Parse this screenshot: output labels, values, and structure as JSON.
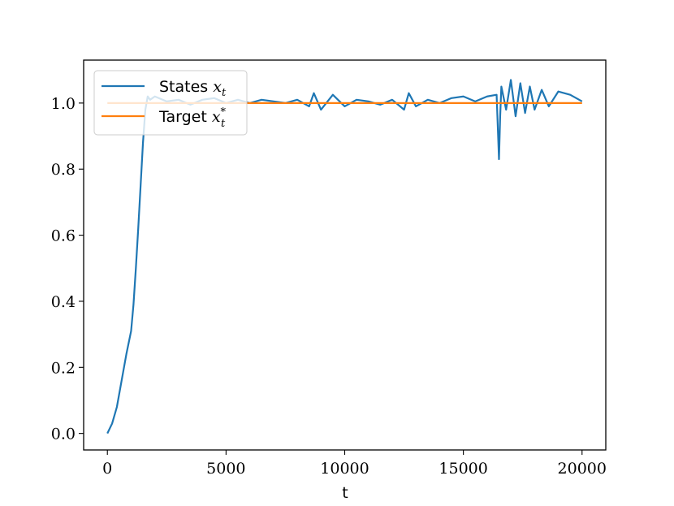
{
  "chart_data": {
    "type": "line",
    "title": "",
    "xlabel": "t",
    "ylabel": "",
    "xlim": [
      -1000,
      21000
    ],
    "ylim": [
      -0.05,
      1.13
    ],
    "xticks": [
      0,
      5000,
      10000,
      15000,
      20000
    ],
    "xtick_labels": [
      "0",
      "5000",
      "10000",
      "15000",
      "20000"
    ],
    "yticks": [
      0.0,
      0.2,
      0.4,
      0.6,
      0.8,
      1.0
    ],
    "ytick_labels": [
      "0.0",
      "0.2",
      "0.4",
      "0.6",
      "0.8",
      "1.0"
    ],
    "grid": false,
    "legend_position": "top-left",
    "series": [
      {
        "name": "States x_t",
        "label_text": "States",
        "label_math": "x",
        "label_math_sub": "t",
        "label_math_sup": "",
        "color": "#1f77b4",
        "x": [
          0,
          200,
          400,
          600,
          800,
          1000,
          1100,
          1200,
          1300,
          1400,
          1500,
          1600,
          1700,
          1800,
          2000,
          2500,
          3000,
          3500,
          4000,
          4500,
          5000,
          5500,
          6000,
          6500,
          7000,
          7500,
          8000,
          8500,
          8700,
          9000,
          9500,
          10000,
          10500,
          11000,
          11500,
          12000,
          12500,
          12700,
          13000,
          13500,
          14000,
          14500,
          15000,
          15500,
          16000,
          16400,
          16500,
          16550,
          16600,
          16800,
          17000,
          17200,
          17400,
          17600,
          17800,
          18000,
          18300,
          18600,
          19000,
          19500,
          20000
        ],
        "y": [
          0.0,
          0.03,
          0.08,
          0.16,
          0.24,
          0.31,
          0.39,
          0.5,
          0.62,
          0.75,
          0.88,
          0.98,
          1.02,
          1.01,
          1.02,
          1.005,
          1.01,
          0.995,
          1.01,
          1.015,
          1.0,
          1.01,
          1.0,
          1.01,
          1.005,
          1.0,
          1.01,
          0.99,
          1.03,
          0.98,
          1.025,
          0.99,
          1.01,
          1.005,
          0.995,
          1.01,
          0.98,
          1.03,
          0.99,
          1.01,
          1.0,
          1.015,
          1.02,
          1.005,
          1.02,
          1.025,
          0.83,
          0.96,
          1.05,
          0.98,
          1.07,
          0.96,
          1.06,
          0.97,
          1.05,
          0.98,
          1.04,
          0.99,
          1.035,
          1.025,
          1.005
        ]
      },
      {
        "name": "Target x_t^*",
        "label_text": "Target",
        "label_math": "x",
        "label_math_sub": "t",
        "label_math_sup": "*",
        "color": "#ff7f0e",
        "x": [
          0,
          20000
        ],
        "y": [
          1.0,
          1.0
        ]
      }
    ]
  }
}
